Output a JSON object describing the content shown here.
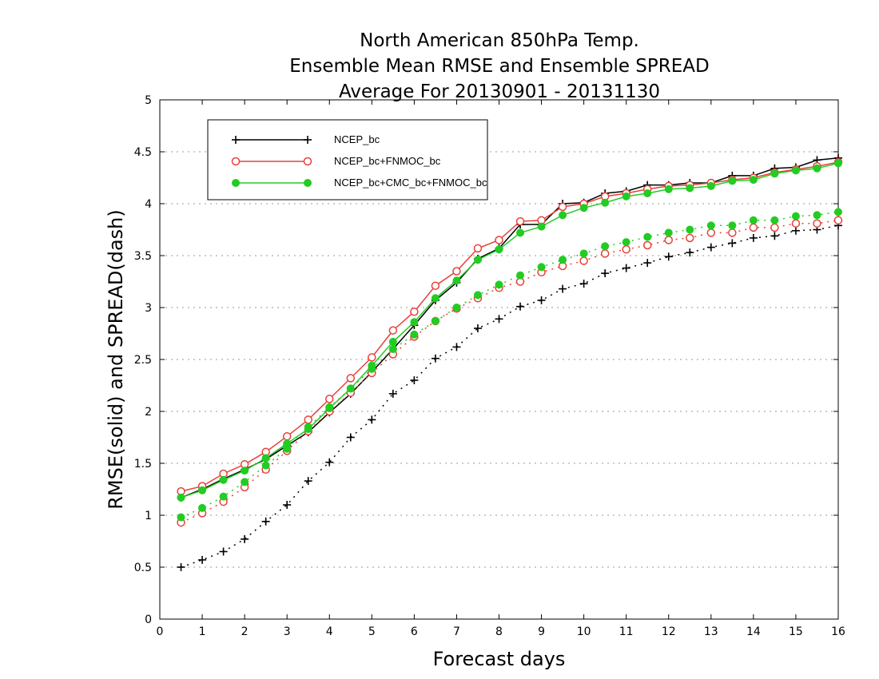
{
  "chart_data": {
    "type": "line",
    "title": [
      "North American 850hPa Temp.",
      "Ensemble Mean RMSE and Ensemble SPREAD",
      "Average For 20130901 - 20131130"
    ],
    "xlabel": "Forecast days",
    "ylabel": "RMSE(solid) and SPREAD(dash)",
    "xlim": [
      0,
      16
    ],
    "ylim": [
      0,
      5
    ],
    "xticks": [
      "0",
      "1",
      "2",
      "3",
      "4",
      "5",
      "6",
      "7",
      "8",
      "9",
      "10",
      "11",
      "12",
      "13",
      "14",
      "15",
      "16"
    ],
    "yticks": [
      "0",
      "0.5",
      "1",
      "1.5",
      "2",
      "2.5",
      "3",
      "3.5",
      "4",
      "4.5",
      "5"
    ],
    "grid": "horizontal dotted",
    "legend_position": "top-left",
    "x": [
      0.5,
      1,
      1.5,
      2,
      2.5,
      3,
      3.5,
      4,
      4.5,
      5,
      5.5,
      6,
      6.5,
      7,
      7.5,
      8,
      8.5,
      9,
      9.5,
      10,
      10.5,
      11,
      11.5,
      12,
      12.5,
      13,
      13.5,
      14,
      14.5,
      15,
      15.5,
      16
    ],
    "series": [
      {
        "name": "NCEP_bc",
        "color": "#000000",
        "marker": "plus",
        "rmse": [
          1.17,
          1.25,
          1.35,
          1.44,
          1.54,
          1.67,
          1.8,
          1.99,
          2.17,
          2.38,
          2.6,
          2.83,
          3.07,
          3.24,
          3.47,
          3.57,
          3.8,
          3.8,
          4.0,
          4.01,
          4.1,
          4.12,
          4.18,
          4.18,
          4.2,
          4.2,
          4.27,
          4.27,
          4.34,
          4.35,
          4.42,
          4.44
        ],
        "spread": [
          0.5,
          0.57,
          0.65,
          0.77,
          0.94,
          1.1,
          1.33,
          1.51,
          1.75,
          1.92,
          2.17,
          2.3,
          2.51,
          2.62,
          2.8,
          2.89,
          3.01,
          3.07,
          3.18,
          3.23,
          3.33,
          3.38,
          3.43,
          3.49,
          3.53,
          3.58,
          3.62,
          3.67,
          3.69,
          3.74,
          3.75,
          3.79
        ]
      },
      {
        "name": "NCEP_bc+FNMOC_bc",
        "color": "#e8403a",
        "marker": "open-circle",
        "rmse": [
          1.23,
          1.28,
          1.4,
          1.49,
          1.61,
          1.76,
          1.92,
          2.12,
          2.32,
          2.52,
          2.78,
          2.96,
          3.21,
          3.35,
          3.57,
          3.65,
          3.83,
          3.84,
          3.97,
          4.0,
          4.07,
          4.1,
          4.14,
          4.17,
          4.18,
          4.2,
          4.23,
          4.25,
          4.3,
          4.33,
          4.36,
          4.4
        ],
        "spread": [
          0.93,
          1.02,
          1.13,
          1.27,
          1.44,
          1.62,
          1.81,
          2.0,
          2.18,
          2.37,
          2.55,
          2.72,
          2.87,
          2.99,
          3.09,
          3.19,
          3.25,
          3.34,
          3.4,
          3.45,
          3.52,
          3.56,
          3.6,
          3.65,
          3.67,
          3.72,
          3.72,
          3.77,
          3.77,
          3.81,
          3.81,
          3.84
        ]
      },
      {
        "name": "NCEP_bc+CMC_bc+FNMOC_bc",
        "color": "#22cc22",
        "marker": "filled-circle",
        "rmse": [
          1.17,
          1.24,
          1.34,
          1.43,
          1.55,
          1.69,
          1.83,
          2.03,
          2.22,
          2.44,
          2.67,
          2.86,
          3.09,
          3.26,
          3.46,
          3.56,
          3.72,
          3.78,
          3.89,
          3.96,
          4.01,
          4.07,
          4.1,
          4.14,
          4.15,
          4.17,
          4.22,
          4.23,
          4.29,
          4.32,
          4.34,
          4.39
        ],
        "spread": [
          0.98,
          1.07,
          1.18,
          1.32,
          1.48,
          1.64,
          1.85,
          2.04,
          2.22,
          2.41,
          2.6,
          2.74,
          2.87,
          3.0,
          3.12,
          3.22,
          3.31,
          3.39,
          3.46,
          3.52,
          3.59,
          3.63,
          3.68,
          3.72,
          3.75,
          3.79,
          3.79,
          3.84,
          3.84,
          3.88,
          3.89,
          3.92
        ]
      }
    ]
  }
}
